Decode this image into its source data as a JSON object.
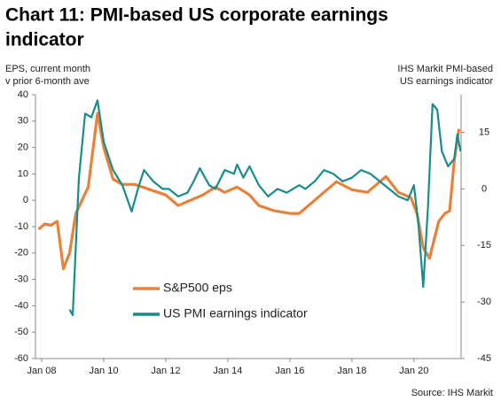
{
  "chart_data": {
    "type": "line",
    "title": [
      "Chart 11: PMI-based US corporate earnings",
      "indicator"
    ],
    "ylabel": [
      "EPS, current month",
      "v prior 6-month ave"
    ],
    "y2label": [
      "IHS Markit PMI-based",
      "US earnings indicator"
    ],
    "source": "Source: IHS Markit",
    "xlim": [
      2007.8,
      2021.52
    ],
    "xticks": [
      {
        "value": 2008,
        "label": "Jan 08"
      },
      {
        "value": 2010,
        "label": "Jan 10"
      },
      {
        "value": 2012,
        "label": "Jan 12"
      },
      {
        "value": 2014,
        "label": "Jan 14"
      },
      {
        "value": 2016,
        "label": "Jan 16"
      },
      {
        "value": 2018,
        "label": "Jan 18"
      },
      {
        "value": 2020,
        "label": "Jan 20"
      }
    ],
    "ylim": [
      -60,
      40
    ],
    "yticks": [
      -60,
      -50,
      -40,
      -30,
      -20,
      -10,
      0,
      10,
      20,
      30,
      40
    ],
    "y2lim": [
      -45,
      25
    ],
    "y2ticks": [
      -45,
      -30,
      -15,
      0,
      15
    ],
    "legend": "lower center",
    "series": [
      {
        "name": "S&P500 eps",
        "color": "#e8823a",
        "x": [
          2007.9,
          2008.1,
          2008.3,
          2008.5,
          2008.7,
          2008.9,
          2009.1,
          2009.3,
          2009.5,
          2009.8,
          2010.0,
          2010.3,
          2010.6,
          2011.0,
          2011.5,
          2012.0,
          2012.4,
          2012.8,
          2013.2,
          2013.6,
          2013.9,
          2014.3,
          2014.7,
          2015.0,
          2015.5,
          2016.0,
          2016.3,
          2016.6,
          2017.0,
          2017.5,
          2018.0,
          2018.5,
          2018.8,
          2019.1,
          2019.5,
          2019.9,
          2020.1,
          2020.3,
          2020.5,
          2020.8,
          2021.0,
          2021.15,
          2021.3,
          2021.45
        ],
        "values": [
          -11,
          -9,
          -9.5,
          -8,
          -26,
          -20,
          -5,
          0,
          5,
          33,
          20,
          8,
          6,
          6,
          4,
          2,
          -2,
          0,
          2,
          5,
          3,
          5,
          2,
          -2,
          -4,
          -5,
          -5,
          -2,
          2,
          7,
          4,
          3,
          6,
          9,
          3,
          1,
          -5,
          -18,
          -22,
          -8,
          -5,
          -4,
          15,
          27
        ]
      },
      {
        "name": "US PMI earnings indicator",
        "color": "#1a8c8c",
        "axis": "y2",
        "x": [
          2008.9,
          2009.0,
          2009.2,
          2009.4,
          2009.6,
          2009.8,
          2010.0,
          2010.3,
          2010.6,
          2010.9,
          2011.1,
          2011.3,
          2011.6,
          2011.9,
          2012.1,
          2012.4,
          2012.7,
          2012.9,
          2013.1,
          2013.4,
          2013.6,
          2013.9,
          2014.2,
          2014.3,
          2014.5,
          2014.7,
          2015.0,
          2015.3,
          2015.6,
          2015.9,
          2016.1,
          2016.3,
          2016.5,
          2016.8,
          2017.1,
          2017.4,
          2017.7,
          2018.0,
          2018.3,
          2018.6,
          2018.9,
          2019.2,
          2019.5,
          2019.8,
          2020.0,
          2020.15,
          2020.3,
          2020.45,
          2020.6,
          2020.75,
          2020.9,
          2021.1,
          2021.3,
          2021.4,
          2021.5
        ],
        "values": [
          -32,
          -33.5,
          3,
          20,
          19,
          23.5,
          12.5,
          5,
          1,
          -6,
          0,
          5,
          2,
          0,
          0,
          -2,
          -1,
          2,
          5.5,
          1,
          0,
          5,
          4,
          6.5,
          3,
          6,
          1,
          -2,
          0,
          -1,
          0,
          1,
          0,
          2,
          5,
          4,
          2,
          3,
          5,
          4,
          2,
          0,
          -2,
          -3,
          1,
          -10,
          -26,
          -5,
          22.5,
          21,
          10,
          6,
          8,
          14.5,
          10
        ]
      }
    ]
  }
}
